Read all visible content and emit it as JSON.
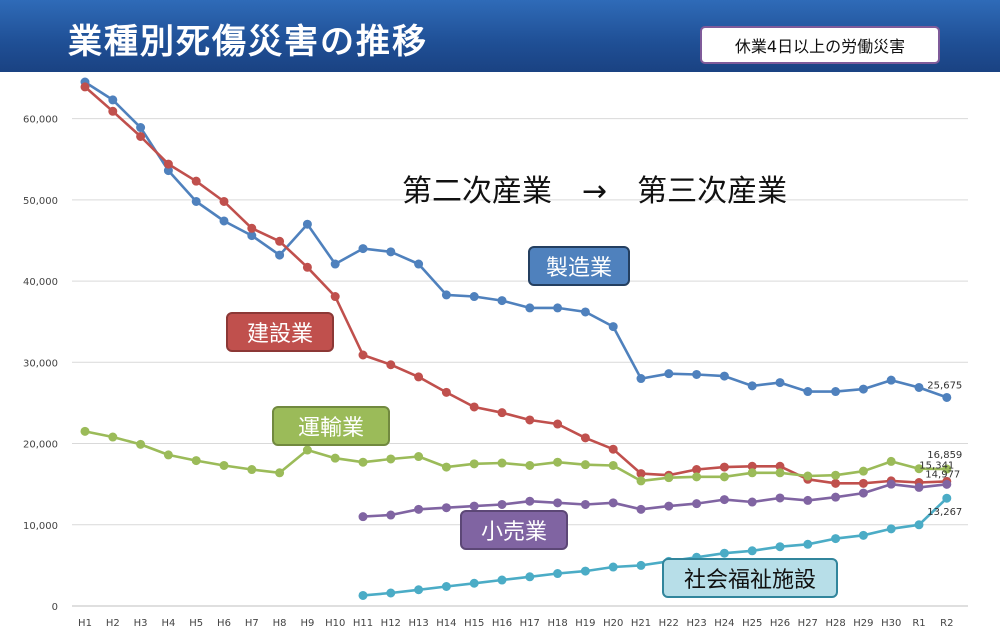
{
  "header": {
    "title": "業種別死傷災害の推移",
    "note": "休業4日以上の労働災害",
    "trend": "第二次産業　→　第三次産業"
  },
  "chart_data": {
    "type": "line",
    "title": "業種別死傷災害の推移",
    "xlabel": "",
    "ylabel": "",
    "ylim": [
      0,
      65000
    ],
    "yticks": [
      0,
      10000,
      20000,
      30000,
      40000,
      50000,
      60000
    ],
    "ytick_labels": [
      "0",
      "10,000",
      "20,000",
      "30,000",
      "40,000",
      "50,000",
      "60,000"
    ],
    "categories": [
      "H1",
      "H2",
      "H3",
      "H4",
      "H5",
      "H6",
      "H7",
      "H8",
      "H9",
      "H10",
      "H11",
      "H12",
      "H13",
      "H14",
      "H15",
      "H16",
      "H17",
      "H18",
      "H19",
      "H20",
      "H21",
      "H22",
      "H23",
      "H24",
      "H25",
      "H26",
      "H27",
      "H28",
      "H29",
      "H30",
      "R1",
      "R2"
    ],
    "grid": true,
    "series": [
      {
        "name": "製造業",
        "color": "#4f81bd",
        "label_bg": "#4f81bd",
        "label_border": "#243f60",
        "label_color": "#ffffff",
        "end_label": "25,675",
        "values": [
          64500,
          62300,
          58900,
          53600,
          49800,
          47400,
          45600,
          43200,
          47000,
          42100,
          44000,
          43600,
          42100,
          38300,
          38100,
          37600,
          36700,
          36700,
          36200,
          34400,
          28000,
          28600,
          28500,
          28300,
          27100,
          27500,
          26400,
          26400,
          26700,
          27800,
          26900,
          25675
        ]
      },
      {
        "name": "建設業",
        "color": "#c0504d",
        "label_bg": "#c0504d",
        "label_border": "#8c3836",
        "label_color": "#ffffff",
        "end_label": "15,341",
        "values": [
          63900,
          60900,
          57800,
          54400,
          52300,
          49800,
          46500,
          44900,
          41700,
          38100,
          30900,
          29700,
          28200,
          26300,
          24500,
          23800,
          22900,
          22400,
          20700,
          19300,
          16300,
          16100,
          16800,
          17100,
          17200,
          17200,
          15600,
          15100,
          15100,
          15400,
          15200,
          15341
        ]
      },
      {
        "name": "運輸業",
        "color": "#9bbb59",
        "label_bg": "#9bbb59",
        "label_border": "#71893f",
        "label_color": "#ffffff",
        "end_label": "16,859",
        "values": [
          21500,
          20800,
          19900,
          18600,
          17900,
          17300,
          16800,
          16400,
          19200,
          18200,
          17700,
          18100,
          18400,
          17100,
          17500,
          17600,
          17300,
          17700,
          17400,
          17300,
          15400,
          15800,
          15900,
          15900,
          16400,
          16400,
          16000,
          16100,
          16600,
          17800,
          16900,
          16859
        ]
      },
      {
        "name": "小売業",
        "color": "#8064a2",
        "label_bg": "#8064a2",
        "label_border": "#5c4776",
        "label_color": "#ffffff",
        "end_label": "14,977",
        "values": [
          null,
          null,
          null,
          null,
          null,
          null,
          null,
          null,
          null,
          null,
          11000,
          11200,
          11900,
          12100,
          12300,
          12500,
          12900,
          12700,
          12500,
          12700,
          11900,
          12300,
          12600,
          13100,
          12800,
          13300,
          13000,
          13400,
          13900,
          15000,
          14600,
          14977
        ]
      },
      {
        "name": "社会福祉施設",
        "color": "#4bacc6",
        "label_bg": "#b7dee8",
        "label_border": "#31859c",
        "label_color": "#111111",
        "end_label": "13,267",
        "values": [
          null,
          null,
          null,
          null,
          null,
          null,
          null,
          null,
          null,
          null,
          1300,
          1600,
          2000,
          2400,
          2800,
          3200,
          3600,
          4000,
          4300,
          4800,
          5000,
          5500,
          6000,
          6500,
          6800,
          7300,
          7600,
          8300,
          8700,
          9500,
          10000,
          13267
        ]
      }
    ]
  }
}
